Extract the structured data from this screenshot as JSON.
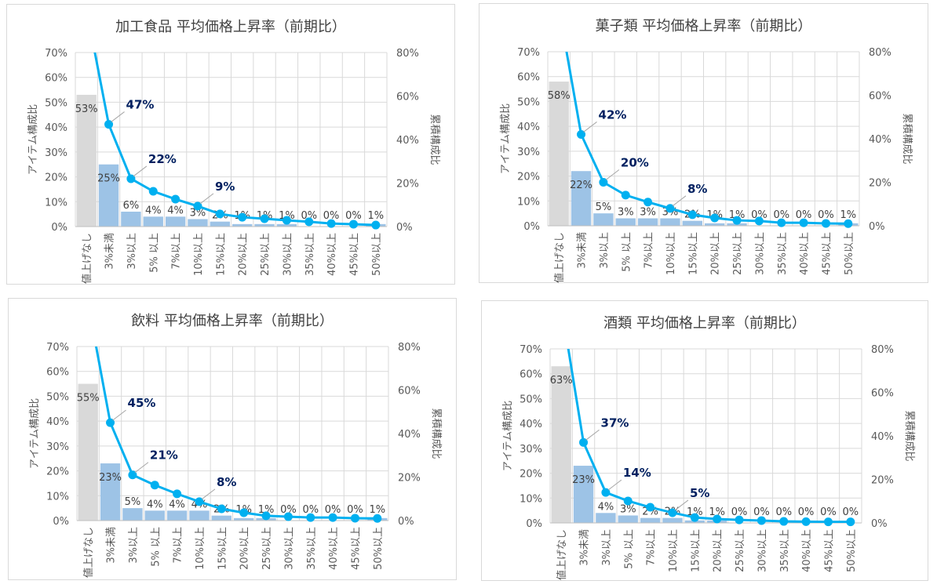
{
  "chart_data": [
    {
      "type": "bar+line",
      "title": "加工食品 平均価格上昇率（前期比）",
      "ylabel": "アイテム構成比",
      "y2label": "累積構成比",
      "ylim": [
        0,
        0.7
      ],
      "y2lim": [
        0,
        0.8
      ],
      "yticks": [
        "0%",
        "10%",
        "20%",
        "30%",
        "40%",
        "50%",
        "60%",
        "70%"
      ],
      "y2ticks": [
        "0%",
        "20%",
        "40%",
        "60%",
        "80%"
      ],
      "grid": true,
      "categories": [
        "値上げなし",
        "3%未満",
        "3%以上",
        "5% 以上",
        "7%以上",
        "10%以上",
        "15%以上",
        "20%以上",
        "25%以上",
        "30%以上",
        "35%以上",
        "40%以上",
        "45%以上",
        "50%以上"
      ],
      "bar_values": [
        53,
        25,
        6,
        4,
        4,
        3,
        2,
        1,
        1,
        1,
        0,
        0,
        0,
        1
      ],
      "bar_labels": [
        "53%",
        "25%",
        "6%",
        "4%",
        "4%",
        "3%",
        "2%",
        "1%",
        "1%",
        "1%",
        "0%",
        "0%",
        "0%",
        "1%"
      ],
      "line_values": [
        100,
        47,
        22,
        16.2,
        12.6,
        9.4,
        5.8,
        4.3,
        3.6,
        2.9,
        2.2,
        1.4,
        1.1,
        0.7
      ],
      "line_labels": [
        {
          "index": 1,
          "text": "47%"
        },
        {
          "index": 2,
          "text": "22%"
        },
        {
          "index": 5,
          "text": "9%"
        }
      ]
    },
    {
      "type": "bar+line",
      "title": "菓子類  平均価格上昇率（前期比）",
      "ylabel": "アイテム構成比",
      "y2label": "累積構成比",
      "ylim": [
        0,
        0.7
      ],
      "y2lim": [
        0,
        0.8
      ],
      "yticks": [
        "0%",
        "10%",
        "20%",
        "30%",
        "40%",
        "50%",
        "60%",
        "70%"
      ],
      "y2ticks": [
        "0%",
        "20%",
        "40%",
        "60%",
        "80%"
      ],
      "grid": true,
      "categories": [
        "値上げなし",
        "3%未満",
        "3%以上",
        "5% 以上",
        "7%以上",
        "10%以上",
        "15%以上",
        "20%以上",
        "25%以上",
        "30%以上",
        "35%以上",
        "40%以上",
        "45%以上",
        "50%以上"
      ],
      "bar_values": [
        58,
        22,
        5,
        3,
        3,
        3,
        2,
        1,
        1,
        0,
        0,
        0,
        0,
        1
      ],
      "bar_labels": [
        "58%",
        "22%",
        "5%",
        "3%",
        "3%",
        "3%",
        "2%",
        "1%",
        "1%",
        "0%",
        "0%",
        "0%",
        "0%",
        "1%"
      ],
      "line_values": [
        100,
        42,
        20,
        14.1,
        10.9,
        8,
        5.1,
        3.6,
        2.5,
        2.2,
        1.4,
        1.4,
        1.1,
        1
      ],
      "line_labels": [
        {
          "index": 1,
          "text": "42%"
        },
        {
          "index": 2,
          "text": "20%"
        },
        {
          "index": 5,
          "text": "8%"
        }
      ]
    },
    {
      "type": "bar+line",
      "title": "飲料  平均価格上昇率（前期比）",
      "ylabel": "アイテム構成比",
      "y2label": "累積構成比",
      "ylim": [
        0,
        0.7
      ],
      "y2lim": [
        0,
        0.8
      ],
      "yticks": [
        "0%",
        "10%",
        "20%",
        "30%",
        "40%",
        "50%",
        "60%",
        "70%"
      ],
      "y2ticks": [
        "0%",
        "20%",
        "40%",
        "60%",
        "80%"
      ],
      "grid": true,
      "categories": [
        "値上げなし",
        "3%未満",
        "3%以上",
        "5% 以上",
        "7%以上",
        "10%以上",
        "15%以上",
        "20%以上",
        "25%以上",
        "30%以上",
        "35%以上",
        "40%以上",
        "45%以上",
        "50%以上"
      ],
      "bar_values": [
        55,
        23,
        5,
        4,
        4,
        4,
        2,
        1,
        1,
        0,
        0,
        0,
        0,
        1
      ],
      "bar_labels": [
        "55%",
        "23%",
        "5%",
        "4%",
        "4%",
        "4%",
        "2%",
        "1%",
        "1%",
        "0%",
        "0%",
        "0%",
        "0%",
        "1%"
      ],
      "line_values": [
        100,
        45,
        21,
        16.3,
        12.3,
        8.7,
        5.4,
        3.6,
        2.2,
        1.8,
        1.4,
        1.4,
        1.1,
        1
      ],
      "line_labels": [
        {
          "index": 1,
          "text": "45%"
        },
        {
          "index": 2,
          "text": "21%"
        },
        {
          "index": 5,
          "text": "8%"
        }
      ]
    },
    {
      "type": "bar+line",
      "title": "酒類  平均価格上昇率（前期比）",
      "ylabel": "アイテム構成比",
      "y2label": "累積構成比",
      "ylim": [
        0,
        0.7
      ],
      "y2lim": [
        0,
        0.8
      ],
      "yticks": [
        "0%",
        "10%",
        "20%",
        "30%",
        "40%",
        "50%",
        "60%",
        "70%"
      ],
      "y2ticks": [
        "0%",
        "20%",
        "40%",
        "60%",
        "80%"
      ],
      "grid": true,
      "categories": [
        "値上げなし",
        "3%未満",
        "3%以上",
        "5% 以上",
        "7%以上",
        "10%以上",
        "15%以上",
        "20%以上",
        "25%以上",
        "30%以上",
        "35%以上",
        "40%以上",
        "45%以上",
        "50%以上"
      ],
      "bar_values": [
        63,
        23,
        4,
        3,
        2,
        2,
        1,
        1,
        0,
        0,
        0,
        0,
        0,
        0
      ],
      "bar_labels": [
        "63%",
        "23%",
        "4%",
        "3%",
        "2%",
        "2%",
        "1%",
        "1%",
        "0%",
        "0%",
        "0%",
        "0%",
        "0%",
        "0%"
      ],
      "line_values": [
        100,
        37,
        14,
        10.1,
        7.2,
        4.7,
        2.5,
        1.8,
        1.4,
        1.1,
        0.7,
        0.6,
        0.5,
        0.5
      ],
      "line_labels": [
        {
          "index": 1,
          "text": "37%"
        },
        {
          "index": 2,
          "text": "14%"
        },
        {
          "index": 5,
          "text": "5%"
        }
      ]
    }
  ],
  "colors": {
    "bar_first": "#d9d9d9",
    "bar": "#9dc3e6",
    "line": "#00b0f0",
    "line_label": "#002060",
    "grid": "#d9d9d9",
    "axis_text": "#595959"
  }
}
